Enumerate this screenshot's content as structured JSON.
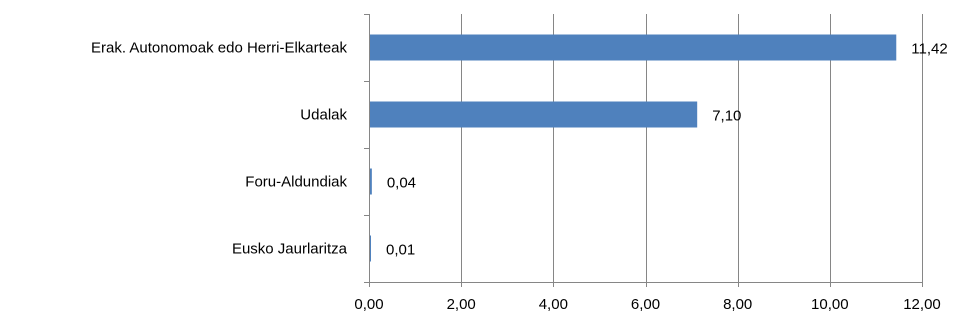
{
  "colors": {
    "bar": "#4f81bd",
    "grid": "#868686",
    "axis": "#868686",
    "text": "#000000",
    "background": "#ffffff"
  },
  "chart_data": {
    "type": "bar",
    "orientation": "horizontal",
    "categories": [
      "Erak. Autonomoak edo Herri-Elkarteak",
      "Udalak",
      "Foru-Aldundiak",
      "Eusko Jaurlaritza"
    ],
    "values": [
      11.42,
      7.1,
      0.04,
      0.01
    ],
    "data_labels": [
      "11,42",
      "7,10",
      "0,04",
      "0,01"
    ],
    "xlim": [
      0,
      12
    ],
    "xticks": [
      0,
      2,
      4,
      6,
      8,
      10,
      12
    ],
    "xtick_labels": [
      "0,00",
      "2,00",
      "4,00",
      "6,00",
      "8,00",
      "10,00",
      "12,00"
    ],
    "title": "",
    "xlabel": "",
    "ylabel": "",
    "grid": true,
    "legend": "none"
  }
}
